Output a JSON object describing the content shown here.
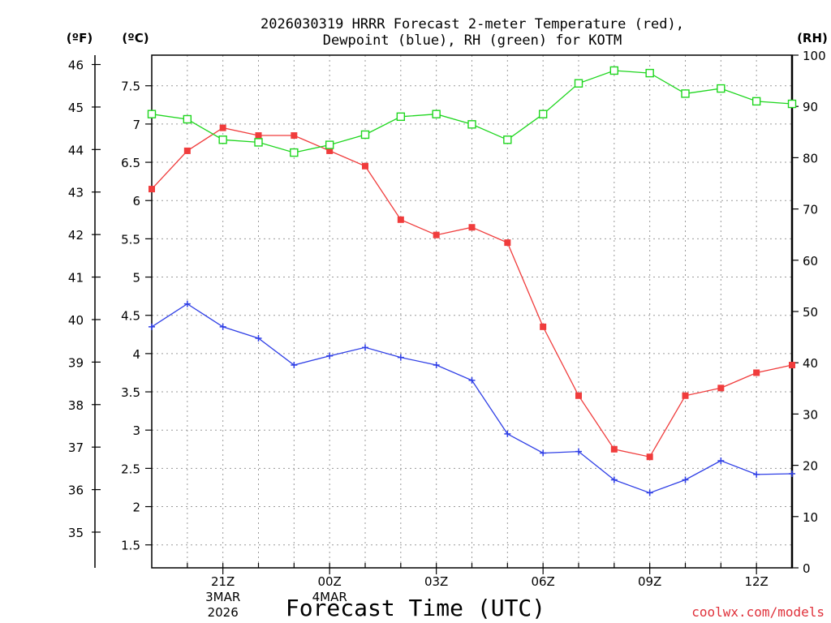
{
  "chart_data": {
    "type": "line",
    "title_line1": "2026030319 HRRR Forecast 2-meter Temperature (red),",
    "title_line2": "Dewpoint (blue), RH (green) for KOTM",
    "xlabel": "Forecast Time (UTC)",
    "watermark": "coolwx.com/models",
    "units": {
      "fahrenheit": "(ºF)",
      "celsius": "(ºC)",
      "rh": "(RH)"
    },
    "x_hours": [
      19,
      20,
      21,
      22,
      23,
      24,
      25,
      26,
      27,
      28,
      29,
      30,
      31,
      32,
      33,
      34,
      35,
      36,
      37
    ],
    "x_ticks": [
      {
        "hour": 21,
        "lines": [
          "21Z",
          "3MAR",
          "2026"
        ]
      },
      {
        "hour": 24,
        "lines": [
          "00Z",
          "4MAR"
        ]
      },
      {
        "hour": 27,
        "lines": [
          "03Z"
        ]
      },
      {
        "hour": 30,
        "lines": [
          "06Z"
        ]
      },
      {
        "hour": 33,
        "lines": [
          "09Z"
        ]
      },
      {
        "hour": 36,
        "lines": [
          "12Z"
        ]
      }
    ],
    "celsius_axis": {
      "range": [
        1.2,
        7.9
      ],
      "ticks": [
        "1.5",
        "2",
        "2.5",
        "3",
        "3.5",
        "4",
        "4.5",
        "5",
        "5.5",
        "6",
        "6.5",
        "7",
        "7.5"
      ]
    },
    "fahrenheit_axis": {
      "ticks": [
        "35",
        "36",
        "37",
        "38",
        "39",
        "40",
        "41",
        "42",
        "43",
        "44",
        "45",
        "46"
      ]
    },
    "rh_axis": {
      "range": [
        0,
        100
      ],
      "ticks": [
        "0",
        "10",
        "20",
        "30",
        "40",
        "50",
        "60",
        "70",
        "80",
        "90",
        "100"
      ]
    },
    "series": [
      {
        "name": "Temperature",
        "axis": "celsius",
        "color": "#f03c3c",
        "marker": "filled-square",
        "values": [
          6.15,
          6.65,
          6.95,
          6.85,
          6.85,
          6.65,
          6.45,
          5.75,
          5.55,
          5.65,
          5.45,
          4.35,
          3.45,
          2.75,
          2.65,
          3.45,
          3.55,
          3.75,
          3.85
        ]
      },
      {
        "name": "Dewpoint",
        "axis": "celsius",
        "color": "#2f3fe6",
        "marker": "plus",
        "values": [
          4.35,
          4.65,
          4.35,
          4.2,
          3.85,
          3.97,
          4.08,
          3.95,
          3.85,
          3.65,
          2.95,
          2.7,
          2.72,
          2.35,
          2.18,
          2.35,
          2.6,
          2.42,
          2.43
        ]
      },
      {
        "name": "RH",
        "axis": "rh",
        "color": "#1ed61e",
        "marker": "open-square",
        "values": [
          88.5,
          87.5,
          83.5,
          83.0,
          81.0,
          82.5,
          84.5,
          88.0,
          88.5,
          86.5,
          83.5,
          88.5,
          94.5,
          97.0,
          96.5,
          92.5,
          93.5,
          91.0,
          90.5
        ]
      }
    ]
  }
}
